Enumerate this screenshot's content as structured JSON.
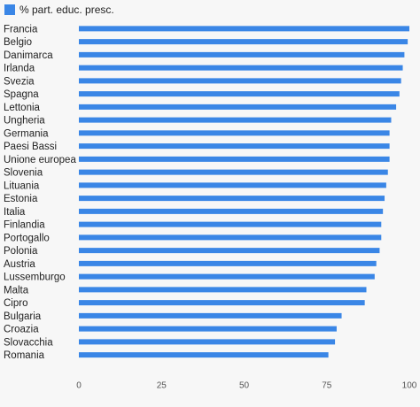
{
  "chart_data": {
    "type": "bar",
    "orientation": "horizontal",
    "series": [
      {
        "name": "% part. educ. presc.",
        "color": "#3a86e6",
        "values": [
          100,
          99.5,
          98.5,
          98,
          97.5,
          97,
          96,
          94.5,
          94,
          94,
          94,
          93.5,
          93,
          92.5,
          92,
          91.5,
          91.5,
          91,
          90,
          89.5,
          87,
          86.5,
          79.5,
          78,
          77.5,
          75.5
        ]
      }
    ],
    "categories": [
      "Francia",
      "Belgio",
      "Danimarca",
      "Irlanda",
      "Svezia",
      "Spagna",
      "Lettonia",
      "Ungheria",
      "Germania",
      "Paesi Bassi",
      "Unione europea",
      "Slovenia",
      "Lituania",
      "Estonia",
      "Italia",
      "Finlandia",
      "Portogallo",
      "Polonia",
      "Austria",
      "Lussemburgo",
      "Malta",
      "Cipro",
      "Bulgaria",
      "Croazia",
      "Slovacchia",
      "Romania"
    ],
    "xlim": [
      0,
      100
    ],
    "xticks": [
      "0",
      "25",
      "50",
      "75",
      "100"
    ],
    "grid": false,
    "legend": "top-left"
  }
}
